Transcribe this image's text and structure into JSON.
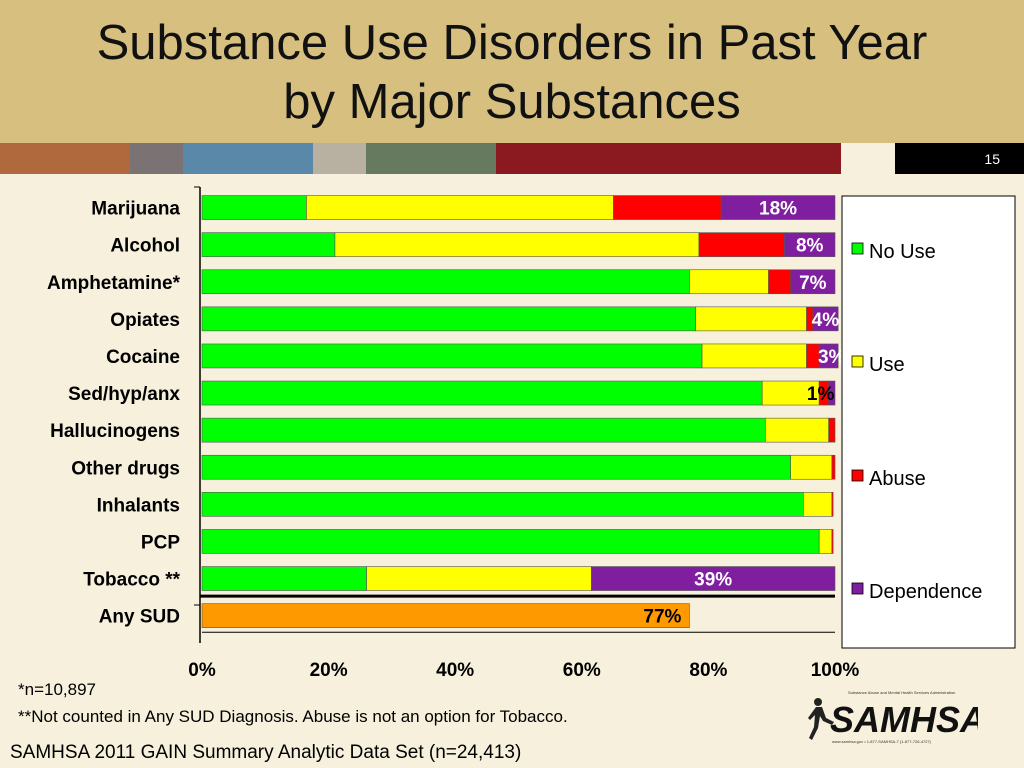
{
  "slide": {
    "title_line1": "Substance Use Disorders in Past Year",
    "title_line2": "by Major Substances",
    "number": "15",
    "stripe_colors": [
      "#b0693d",
      "#7b7274",
      "#5a88a8",
      "#b8b0a0",
      "#657a5e",
      "#8a1a1f",
      "#f6f0dc"
    ],
    "footnote1": "*n=10,897",
    "footnote2": "**Not counted in Any SUD Diagnosis. Abuse is not an option for Tobacco.",
    "source": "SAMHSA 2011 GAIN Summary Analytic Data Set (n=24,413)",
    "logo_text": "SAMHSA",
    "logo_caption": "Substance Abuse and Mental Health Services Administration",
    "logo_contact": "www.samhsa.gov • 1-877-SAMHSA-7 (1-877-726-4727)"
  },
  "chart_data": {
    "type": "bar",
    "orientation": "horizontal",
    "stacked": true,
    "categories": [
      "Marijuana",
      "Alcohol",
      "Amphetamine*",
      "Opiates",
      "Cocaine",
      "Sed/hyp/anx",
      "Hallucinogens",
      "Other drugs",
      "Inhalants",
      "PCP",
      "Tobacco **",
      "Any SUD"
    ],
    "series": [
      {
        "name": "No Use",
        "color": "#00ff00",
        "values": [
          16.5,
          21,
          77,
          78,
          79,
          88.5,
          89,
          93,
          95,
          97.5,
          26,
          0
        ]
      },
      {
        "name": "Use",
        "color": "#ffff00",
        "values": [
          48.5,
          57.5,
          12.5,
          17.5,
          16.5,
          9,
          10,
          6.5,
          4.5,
          2,
          35.5,
          0
        ]
      },
      {
        "name": "Abuse",
        "color": "#ff0000",
        "values": [
          17,
          13.5,
          3.5,
          1,
          2,
          1.5,
          1,
          0.5,
          0.2,
          0.2,
          0,
          0
        ]
      },
      {
        "name": "Dependence",
        "color": "#7f1f9f",
        "values": [
          18,
          8,
          7,
          4,
          3,
          1,
          0,
          0,
          0,
          0,
          38.5,
          0
        ]
      }
    ],
    "any_sud": {
      "value": 77,
      "color": "#ff9900"
    },
    "data_labels": [
      "18%",
      "8%",
      "7%",
      "4%",
      "3%",
      "1%",
      "",
      "",
      "",
      "",
      "39%",
      "77%"
    ],
    "xlim": [
      0,
      100
    ],
    "x_ticks": [
      "0%",
      "20%",
      "40%",
      "60%",
      "80%",
      "100%"
    ],
    "legend_position": "right",
    "grid": false
  }
}
